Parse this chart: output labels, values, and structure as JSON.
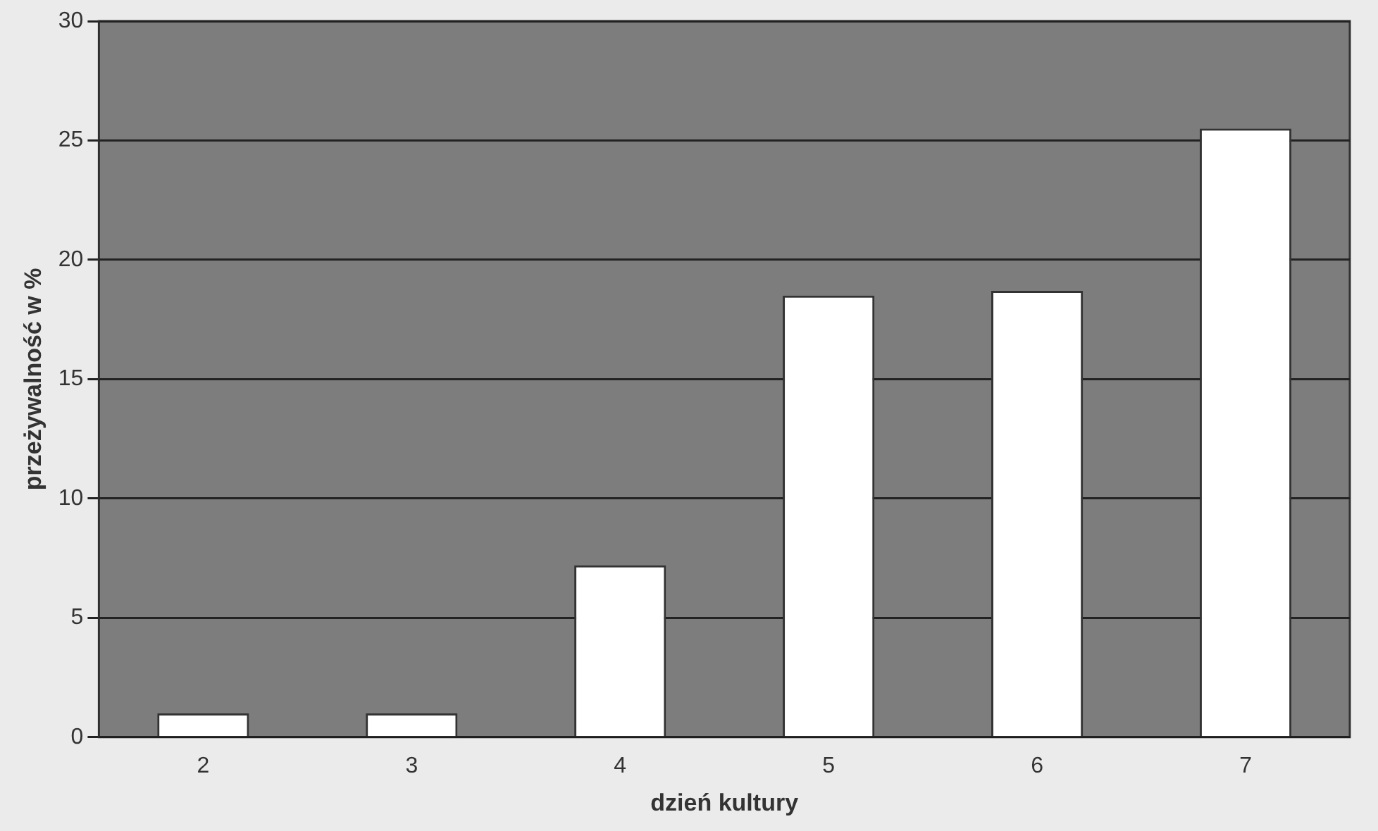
{
  "chart_data": {
    "type": "bar",
    "xlabel": "dzień kultury",
    "ylabel": "przeżywalność w %",
    "categories": [
      "2",
      "3",
      "4",
      "5",
      "6",
      "7"
    ],
    "values": [
      1,
      1,
      7.2,
      18.5,
      18.7,
      25.5
    ],
    "color": "#ffffff",
    "ylim": [
      0,
      30
    ],
    "yticks": [
      0,
      5,
      10,
      15,
      20,
      25,
      30
    ],
    "grid": "y"
  }
}
